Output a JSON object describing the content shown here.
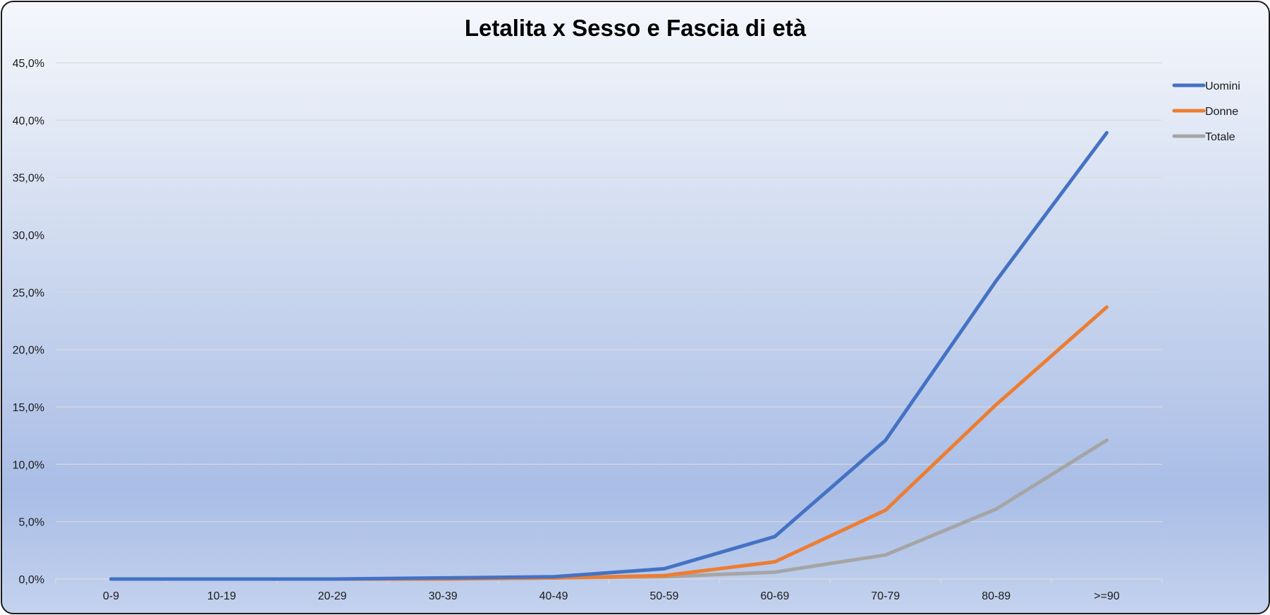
{
  "chart_data": {
    "type": "line",
    "title": "Letalita x Sesso e Fascia di età",
    "categories": [
      "0-9",
      "10-19",
      "20-29",
      "30-39",
      "40-49",
      "50-59",
      "60-69",
      "70-79",
      "80-89",
      ">=90"
    ],
    "series": [
      {
        "name": "Uomini",
        "color": "#4472c4",
        "values": [
          0.0,
          0.0,
          0.0,
          0.1,
          0.2,
          0.9,
          3.7,
          12.1,
          26.0,
          38.9
        ]
      },
      {
        "name": "Donne",
        "color": "#ed7d31",
        "values": [
          0.0,
          0.0,
          0.0,
          0.0,
          0.1,
          0.3,
          1.5,
          6.0,
          15.2,
          23.7
        ]
      },
      {
        "name": "Totale",
        "color": "#a5a5a5",
        "values": [
          0.0,
          0.0,
          0.0,
          0.0,
          0.1,
          0.2,
          0.6,
          2.1,
          6.1,
          12.1
        ]
      }
    ],
    "yticks": [
      "0,0%",
      "5,0%",
      "10,0%",
      "15,0%",
      "20,0%",
      "25,0%",
      "30,0%",
      "35,0%",
      "40,0%",
      "45,0%"
    ],
    "ylim": [
      0,
      45
    ],
    "xlabel": "",
    "ylabel": "",
    "grid": true,
    "legend": "right"
  }
}
